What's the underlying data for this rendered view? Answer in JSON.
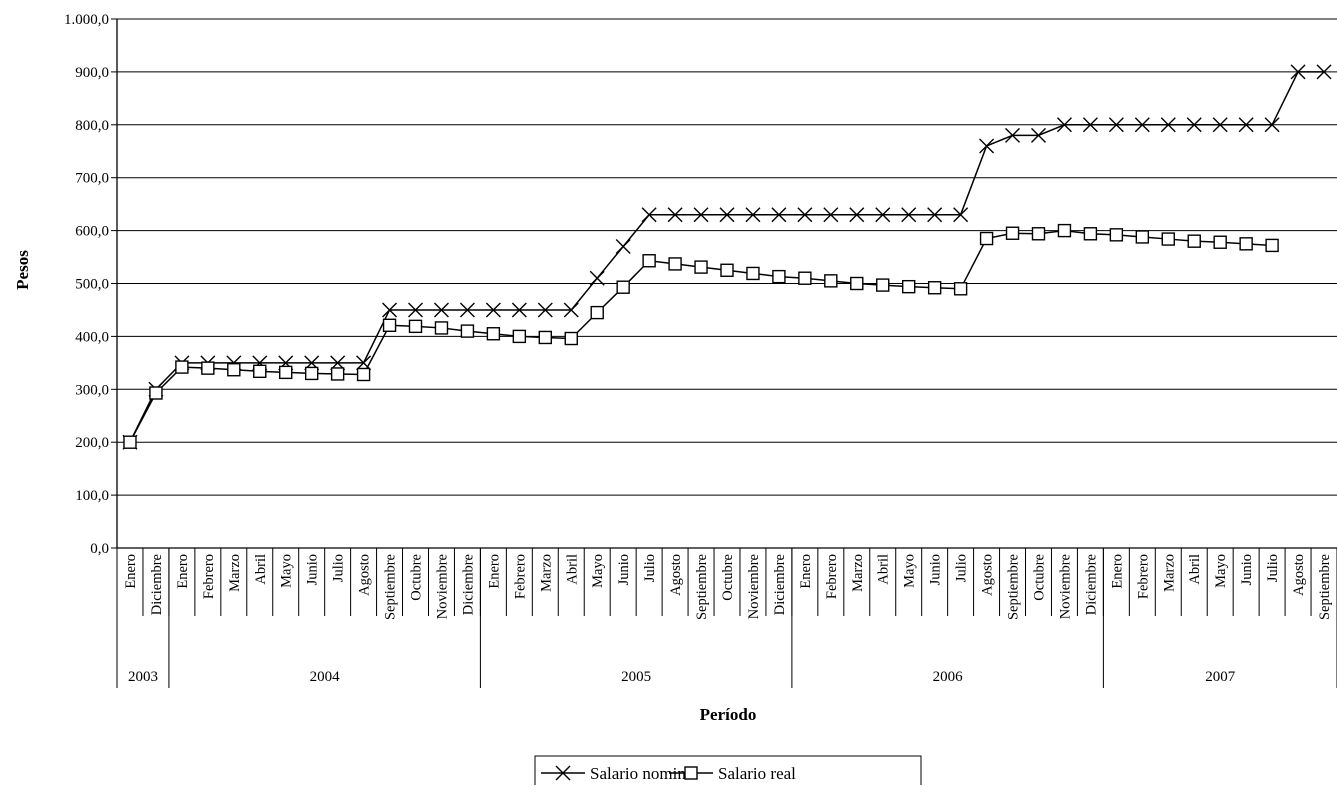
{
  "chart_data": {
    "type": "line",
    "xlabel": "Período",
    "ylabel": "Pesos",
    "ylim": [
      0,
      1000
    ],
    "yticks": [
      "0,0",
      "100,0",
      "200,0",
      "300,0",
      "400,0",
      "500,0",
      "600,0",
      "700,0",
      "800,0",
      "900,0",
      "1.000,0"
    ],
    "grid": "horizontal",
    "legend_position": "bottom",
    "categories": [
      "Enero",
      "Diciembre",
      "Enero",
      "Febrero",
      "Marzo",
      "Abril",
      "Mayo",
      "Junio",
      "Julio",
      "Agosto",
      "Septiembre",
      "Octubre",
      "Noviembre",
      "Diciembre",
      "Enero",
      "Febrero",
      "Marzo",
      "Abril",
      "Mayo",
      "Junio",
      "Julio",
      "Agosto",
      "Septiembre",
      "Octubre",
      "Noviembre",
      "Diciembre",
      "Enero",
      "Febrero",
      "Marzo",
      "Abril",
      "Mayo",
      "Junio",
      "Julio",
      "Agosto",
      "Septiembre",
      "Octubre",
      "Noviembre",
      "Diciembre",
      "Enero",
      "Febrero",
      "Marzo",
      "Abril",
      "Mayo",
      "Junio",
      "Julio",
      "Agosto",
      "Septiembre"
    ],
    "year_groups": [
      {
        "label": "2003",
        "count": 2
      },
      {
        "label": "2004",
        "count": 12
      },
      {
        "label": "2005",
        "count": 12
      },
      {
        "label": "2006",
        "count": 12
      },
      {
        "label": "2007",
        "count": 9
      }
    ],
    "series": [
      {
        "name": "Salario nominal",
        "marker": "x",
        "values": [
          200,
          300,
          350,
          350,
          350,
          350,
          350,
          350,
          350,
          350,
          450,
          450,
          450,
          450,
          450,
          450,
          450,
          450,
          510,
          570,
          630,
          630,
          630,
          630,
          630,
          630,
          630,
          630,
          630,
          630,
          630,
          630,
          630,
          760,
          780,
          780,
          800,
          800,
          800,
          800,
          800,
          800,
          800,
          800,
          800,
          900,
          900
        ]
      },
      {
        "name": "Salario real",
        "marker": "square",
        "values": [
          200,
          293,
          342,
          340,
          337,
          334,
          332,
          330,
          329,
          328,
          421,
          419,
          416,
          410,
          405,
          400,
          398,
          396,
          445,
          493,
          543,
          537,
          531,
          525,
          519,
          513,
          510,
          505,
          500,
          497,
          494,
          492,
          490,
          585,
          595,
          594,
          600,
          594,
          592,
          588,
          584,
          580,
          578,
          575,
          572,
          null,
          null
        ]
      }
    ]
  }
}
